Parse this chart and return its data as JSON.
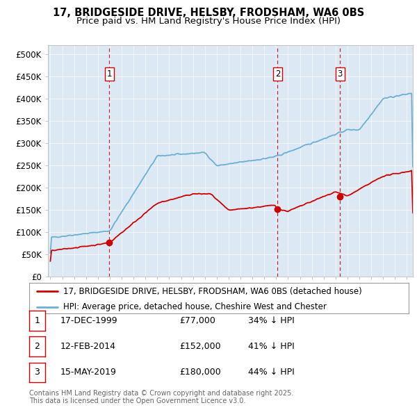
{
  "title": "17, BRIDGESIDE DRIVE, HELSBY, FRODSHAM, WA6 0BS",
  "subtitle": "Price paid vs. HM Land Registry's House Price Index (HPI)",
  "ylim": [
    0,
    520000
  ],
  "yticks": [
    0,
    50000,
    100000,
    150000,
    200000,
    250000,
    300000,
    350000,
    400000,
    450000,
    500000
  ],
  "ytick_labels": [
    "£0",
    "£50K",
    "£100K",
    "£150K",
    "£200K",
    "£250K",
    "£300K",
    "£350K",
    "£400K",
    "£450K",
    "£500K"
  ],
  "xlim_start": 1994.8,
  "xlim_end": 2025.5,
  "hpi_color": "#6baed6",
  "price_color": "#cc0000",
  "vline_color": "#cc0000",
  "background_color": "#dce9f5",
  "sale_dates": [
    1999.96,
    2014.12,
    2019.37
  ],
  "sale_prices": [
    77000,
    152000,
    180000
  ],
  "sale_labels": [
    "1",
    "2",
    "3"
  ],
  "legend_line1": "17, BRIDGESIDE DRIVE, HELSBY, FRODSHAM, WA6 0BS (detached house)",
  "legend_line2": "HPI: Average price, detached house, Cheshire West and Chester",
  "table_rows": [
    [
      "1",
      "17-DEC-1999",
      "£77,000",
      "34% ↓ HPI"
    ],
    [
      "2",
      "12-FEB-2014",
      "£152,000",
      "41% ↓ HPI"
    ],
    [
      "3",
      "15-MAY-2019",
      "£180,000",
      "44% ↓ HPI"
    ]
  ],
  "footnote": "Contains HM Land Registry data © Crown copyright and database right 2025.\nThis data is licensed under the Open Government Licence v3.0.",
  "title_fontsize": 10.5,
  "subtitle_fontsize": 9.5,
  "axis_fontsize": 8.5,
  "legend_fontsize": 8.5,
  "table_fontsize": 9,
  "footnote_fontsize": 7
}
